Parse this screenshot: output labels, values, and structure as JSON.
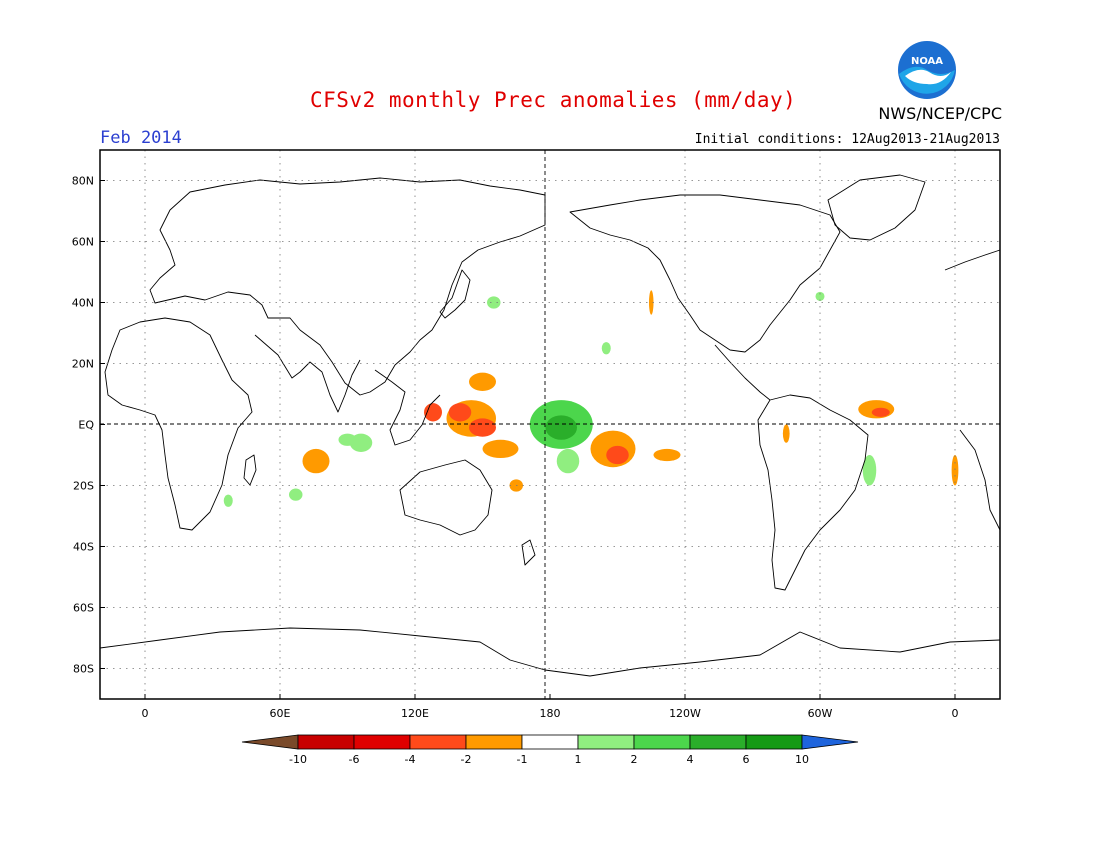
{
  "title": "CFSv2 monthly Prec anomalies (mm/day)",
  "period": "Feb 2014",
  "initial_conditions": "Initial conditions: 12Aug2013-21Aug2013",
  "agency": "NWS/NCEP/CPC",
  "logo_text": "NOAA",
  "map": {
    "projection": "equirectangular",
    "lon_range": [
      -20,
      380
    ],
    "lat_range": [
      -90,
      90
    ],
    "lat_ticks": [
      {
        "lat": 80,
        "label": "80N"
      },
      {
        "lat": 60,
        "label": "60N"
      },
      {
        "lat": 40,
        "label": "40N"
      },
      {
        "lat": 20,
        "label": "20N"
      },
      {
        "lat": 0,
        "label": "EQ"
      },
      {
        "lat": -20,
        "label": "20S"
      },
      {
        "lat": -40,
        "label": "40S"
      },
      {
        "lat": -60,
        "label": "60S"
      },
      {
        "lat": -80,
        "label": "80S"
      }
    ],
    "lon_ticks": [
      {
        "lon": 0,
        "label": "0"
      },
      {
        "lon": 60,
        "label": "60E"
      },
      {
        "lon": 120,
        "label": "120E"
      },
      {
        "lon": 180,
        "label": "180"
      },
      {
        "lon": 240,
        "label": "120W"
      },
      {
        "lon": 300,
        "label": "60W"
      },
      {
        "lon": 360,
        "label": "0"
      }
    ]
  },
  "colorbar": {
    "labels": [
      "-10",
      "-6",
      "-4",
      "-2",
      "-1",
      "1",
      "2",
      "4",
      "6",
      "10"
    ],
    "colors": [
      "#7a4a2a",
      "#c80000",
      "#e00000",
      "#ff4a1a",
      "#ff9a00",
      "#ffffff",
      "#90ee80",
      "#4cd64c",
      "#2aae2a",
      "#159a15",
      "#1e64dc"
    ]
  },
  "anomalies": [
    {
      "lon": 145,
      "lat": 2,
      "rx": 11,
      "ry": 6,
      "color": "#ff9a00"
    },
    {
      "lon": 140,
      "lat": 4,
      "rx": 5,
      "ry": 3,
      "color": "#ff4a1a"
    },
    {
      "lon": 150,
      "lat": -1,
      "rx": 6,
      "ry": 3,
      "color": "#ff4a1a"
    },
    {
      "lon": 150,
      "lat": 14,
      "rx": 6,
      "ry": 3,
      "color": "#ff9a00"
    },
    {
      "lon": 128,
      "lat": 4,
      "rx": 4,
      "ry": 3,
      "color": "#ff4a1a"
    },
    {
      "lon": 158,
      "lat": -8,
      "rx": 8,
      "ry": 3,
      "color": "#ff9a00"
    },
    {
      "lon": 185,
      "lat": 0,
      "rx": 14,
      "ry": 8,
      "color": "#4cd64c"
    },
    {
      "lon": 185,
      "lat": -1,
      "rx": 7,
      "ry": 4,
      "color": "#2aae2a"
    },
    {
      "lon": 188,
      "lat": -12,
      "rx": 5,
      "ry": 4,
      "color": "#90ee80"
    },
    {
      "lon": 208,
      "lat": -8,
      "rx": 10,
      "ry": 6,
      "color": "#ff9a00"
    },
    {
      "lon": 210,
      "lat": -10,
      "rx": 5,
      "ry": 3,
      "color": "#ff4a1a"
    },
    {
      "lon": 232,
      "lat": -10,
      "rx": 6,
      "ry": 2,
      "color": "#ff9a00"
    },
    {
      "lon": 325,
      "lat": 5,
      "rx": 8,
      "ry": 3,
      "color": "#ff9a00"
    },
    {
      "lon": 327,
      "lat": 4,
      "rx": 4,
      "ry": 1.5,
      "color": "#ff4a1a"
    },
    {
      "lon": 76,
      "lat": -12,
      "rx": 6,
      "ry": 4,
      "color": "#ff9a00"
    },
    {
      "lon": 96,
      "lat": -6,
      "rx": 5,
      "ry": 3,
      "color": "#90ee80"
    },
    {
      "lon": 90,
      "lat": -5,
      "rx": 4,
      "ry": 2,
      "color": "#90ee80"
    },
    {
      "lon": 155,
      "lat": 40,
      "rx": 3,
      "ry": 2,
      "color": "#90ee80"
    },
    {
      "lon": 322,
      "lat": -15,
      "rx": 3,
      "ry": 5,
      "color": "#90ee80"
    },
    {
      "lon": 360,
      "lat": -15,
      "rx": 1.5,
      "ry": 5,
      "color": "#ff9a00"
    },
    {
      "lon": 225,
      "lat": 40,
      "rx": 1,
      "ry": 4,
      "color": "#ff9a00"
    },
    {
      "lon": 300,
      "lat": 42,
      "rx": 2,
      "ry": 1.5,
      "color": "#90ee80"
    },
    {
      "lon": 165,
      "lat": -20,
      "rx": 3,
      "ry": 2,
      "color": "#ff9a00"
    },
    {
      "lon": 205,
      "lat": 25,
      "rx": 2,
      "ry": 2,
      "color": "#90ee80"
    },
    {
      "lon": 67,
      "lat": -23,
      "rx": 3,
      "ry": 2,
      "color": "#90ee80"
    },
    {
      "lon": 37,
      "lat": -25,
      "rx": 2,
      "ry": 2,
      "color": "#90ee80"
    },
    {
      "lon": 285,
      "lat": -3,
      "rx": 1.5,
      "ry": 3,
      "color": "#ff9a00"
    }
  ]
}
